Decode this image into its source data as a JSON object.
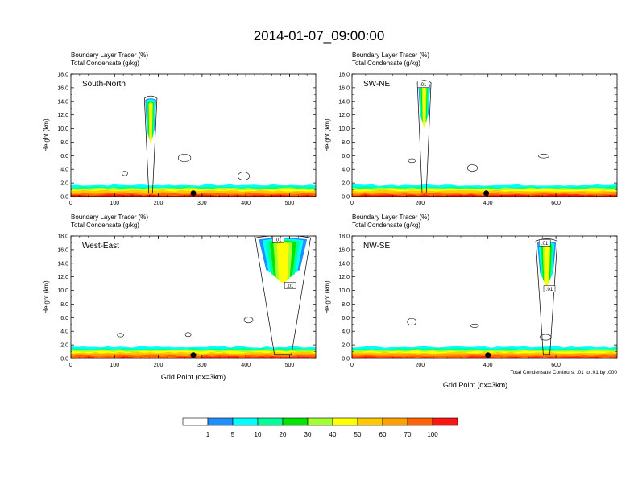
{
  "title": "2014-01-07_09:00:00",
  "panel_left_label": "Boundary Layer Tracer   (%)",
  "panel_right_label": "Total Condensate   (g/kg)",
  "y_axis_label": "Height (km)",
  "x_axis_label": "Grid Point (dx=3km)",
  "contour_note": "Total Condensate Contours: .01 to .01 by .000",
  "colors": {
    "c1": "#ffffff",
    "c2": "#1f8fff",
    "c3": "#00ffff",
    "c4": "#00ff96",
    "c5": "#00e600",
    "c6": "#a0ff32",
    "c7": "#ffff00",
    "c8": "#ffc800",
    "c9": "#ffa000",
    "c10": "#ff6400",
    "c11": "#ff1414"
  },
  "colorbar": {
    "labels": [
      "1",
      "5",
      "10",
      "20",
      "30",
      "40",
      "50",
      "60",
      "70",
      "100"
    ]
  },
  "chart_data": [
    {
      "type": "heatmap",
      "name": "South-North",
      "xticks": [
        "0",
        "100",
        "200",
        "300",
        "400",
        "500"
      ],
      "xtick_values": [
        0,
        100,
        200,
        300,
        400,
        500
      ],
      "xlim": [
        0,
        560
      ],
      "yticks": [
        "0.0",
        "2.0",
        "4.0",
        "6.0",
        "8.0",
        "10.0",
        "12.0",
        "14.0",
        "16.0",
        "18.0"
      ],
      "ylim": [
        0,
        18
      ],
      "marker_x": 280,
      "plume_x": [
        170,
        195
      ],
      "plume_top_km": 14.2,
      "contour_labels": []
    },
    {
      "type": "heatmap",
      "name": "SW-NE",
      "xticks": [
        "0",
        "200",
        "400",
        "600"
      ],
      "xtick_values": [
        0,
        200,
        400,
        600
      ],
      "xlim": [
        0,
        780
      ],
      "yticks": [
        "0.0",
        "2.0",
        "4.0",
        "6.0",
        "8.0",
        "10.0",
        "12.0",
        "14.0",
        "16.0",
        "18.0"
      ],
      "ylim": [
        0,
        18
      ],
      "marker_x": 395,
      "plume_x": [
        195,
        230
      ],
      "plume_top_km": 16.5,
      "contour_labels": [
        ".01"
      ]
    },
    {
      "type": "heatmap",
      "name": "West-East",
      "xticks": [
        "0",
        "100",
        "200",
        "300",
        "400",
        "500"
      ],
      "xtick_values": [
        0,
        100,
        200,
        300,
        400,
        500
      ],
      "xlim": [
        0,
        560
      ],
      "yticks": [
        "0.0",
        "2.0",
        "4.0",
        "6.0",
        "8.0",
        "10.0",
        "12.0",
        "14.0",
        "16.0",
        "18.0"
      ],
      "ylim": [
        0,
        18
      ],
      "marker_x": 280,
      "plume_x": [
        430,
        540
      ],
      "plume_top_km": 17.5,
      "contour_labels": [
        ".01",
        ".01"
      ]
    },
    {
      "type": "heatmap",
      "name": "NW-SE",
      "xticks": [
        "0",
        "200",
        "400",
        "600"
      ],
      "xtick_values": [
        0,
        200,
        400,
        600
      ],
      "xlim": [
        0,
        780
      ],
      "yticks": [
        "0.0",
        "2.0",
        "4.0",
        "6.0",
        "8.0",
        "10.0",
        "12.0",
        "14.0",
        "16.0",
        "18.0"
      ],
      "ylim": [
        0,
        18
      ],
      "marker_x": 400,
      "plume_x": [
        545,
        600
      ],
      "plume_top_km": 17.0,
      "contour_labels": [
        ".01",
        ".01"
      ]
    }
  ]
}
